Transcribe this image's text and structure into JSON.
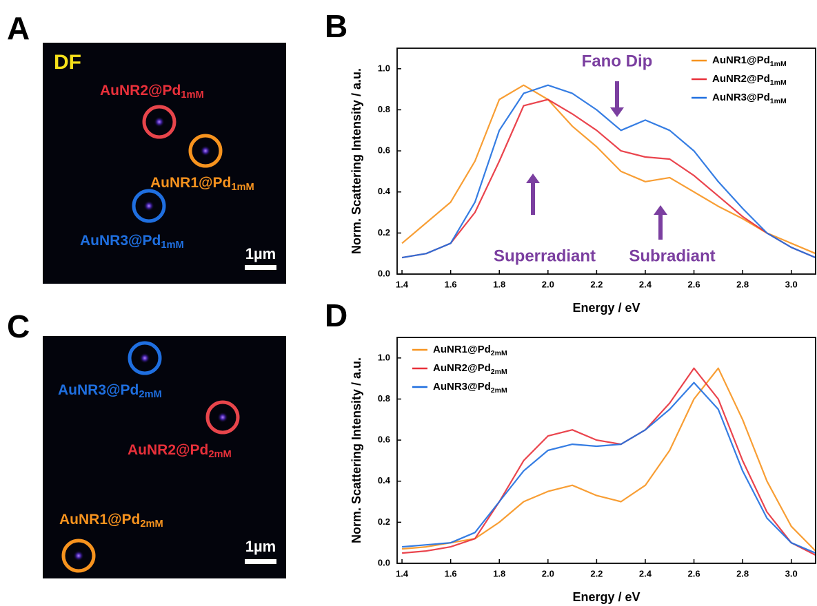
{
  "images": [
    {
      "label": "A",
      "mode": "DF",
      "scale": "1µm",
      "particles": [
        {
          "name": "AuNR2@Pd",
          "subscript": "1mM",
          "color": "#e8303a"
        },
        {
          "name": "AuNR1@Pd",
          "subscript": "1mM",
          "color": "#f7931e"
        },
        {
          "name": "AuNR3@Pd",
          "subscript": "1mM",
          "color": "#1f6fe0"
        }
      ]
    },
    {
      "label": "C",
      "scale": "1µm",
      "particles": [
        {
          "name": "AuNR3@Pd",
          "subscript": "2mM",
          "color": "#1f6fe0"
        },
        {
          "name": "AuNR2@Pd",
          "subscript": "2mM",
          "color": "#e8303a"
        },
        {
          "name": "AuNR1@Pd",
          "subscript": "2mM",
          "color": "#f7931e"
        }
      ]
    }
  ],
  "chart_data": [
    {
      "type": "line",
      "label": "B",
      "xlabel": "Energy / eV",
      "ylabel": "Norm. Scattering Intensity / a.u.",
      "legend": "upper right",
      "annotations": [
        "Fano Dip",
        "Superradiant",
        "Subradiant"
      ],
      "x": [
        1.4,
        1.5,
        1.6,
        1.7,
        1.8,
        1.9,
        2.0,
        2.1,
        2.2,
        2.3,
        2.4,
        2.5,
        2.6,
        2.7,
        2.8,
        2.9,
        3.0,
        3.1
      ],
      "xlim": [
        1.38,
        3.1
      ],
      "xticks": [
        1.4,
        1.6,
        1.8,
        {
          "value": 2,
          "label": "2.0"
        },
        2.2,
        2.4,
        2.6,
        2.8,
        {
          "value": 3,
          "label": "3.0"
        }
      ],
      "ylim": [
        0,
        1.1
      ],
      "yticks": [
        {
          "value": 0,
          "label": "0.0"
        },
        0.2,
        0.4,
        0.6,
        0.8,
        {
          "value": 1,
          "label": "1.0"
        }
      ],
      "series": [
        {
          "name": "AuNR1@Pd",
          "subscript": "1mM",
          "color": "#f7931e",
          "values": [
            0.15,
            0.25,
            0.35,
            0.55,
            0.85,
            0.92,
            0.85,
            0.72,
            0.62,
            0.5,
            0.45,
            0.47,
            0.4,
            0.33,
            0.27,
            0.2,
            0.15,
            0.1
          ]
        },
        {
          "name": "AuNR2@Pd",
          "subscript": "1mM",
          "color": "#e8303a",
          "values": [
            0.08,
            0.1,
            0.15,
            0.3,
            0.55,
            0.82,
            0.85,
            0.78,
            0.7,
            0.6,
            0.57,
            0.56,
            0.48,
            0.38,
            0.28,
            0.2,
            0.13,
            0.08
          ]
        },
        {
          "name": "AuNR3@Pd",
          "subscript": "1mM",
          "color": "#1f6fe0",
          "values": [
            0.08,
            0.1,
            0.15,
            0.35,
            0.7,
            0.88,
            0.92,
            0.88,
            0.8,
            0.7,
            0.75,
            0.7,
            0.6,
            0.45,
            0.32,
            0.2,
            0.13,
            0.08
          ]
        }
      ]
    },
    {
      "type": "line",
      "label": "D",
      "xlabel": "Energy / eV",
      "ylabel": "Norm. Scattering Intensity / a.u.",
      "legend": "upper left",
      "x": [
        1.4,
        1.5,
        1.6,
        1.7,
        1.8,
        1.9,
        2.0,
        2.1,
        2.2,
        2.3,
        2.4,
        2.5,
        2.6,
        2.7,
        2.8,
        2.9,
        3.0,
        3.1
      ],
      "xlim": [
        1.38,
        3.1
      ],
      "xticks": [
        1.4,
        1.6,
        1.8,
        {
          "value": 2,
          "label": "2.0"
        },
        2.2,
        2.4,
        2.6,
        2.8,
        {
          "value": 3,
          "label": "3.0"
        }
      ],
      "ylim": [
        0,
        1.1
      ],
      "yticks": [
        {
          "value": 0,
          "label": "0.0"
        },
        0.2,
        0.4,
        0.6,
        0.8,
        {
          "value": 1,
          "label": "1.0"
        }
      ],
      "series": [
        {
          "name": "AuNR1@Pd",
          "subscript": "2mM",
          "color": "#f7931e",
          "values": [
            0.07,
            0.08,
            0.1,
            0.12,
            0.2,
            0.3,
            0.35,
            0.38,
            0.33,
            0.3,
            0.38,
            0.55,
            0.8,
            0.95,
            0.7,
            0.4,
            0.18,
            0.06
          ]
        },
        {
          "name": "AuNR2@Pd",
          "subscript": "2mM",
          "color": "#e8303a",
          "values": [
            0.05,
            0.06,
            0.08,
            0.12,
            0.3,
            0.5,
            0.62,
            0.65,
            0.6,
            0.58,
            0.65,
            0.78,
            0.95,
            0.8,
            0.5,
            0.25,
            0.1,
            0.04
          ]
        },
        {
          "name": "AuNR3@Pd",
          "subscript": "2mM",
          "color": "#1f6fe0",
          "values": [
            0.08,
            0.09,
            0.1,
            0.15,
            0.3,
            0.45,
            0.55,
            0.58,
            0.57,
            0.58,
            0.65,
            0.75,
            0.88,
            0.75,
            0.45,
            0.22,
            0.1,
            0.05
          ]
        }
      ]
    }
  ]
}
